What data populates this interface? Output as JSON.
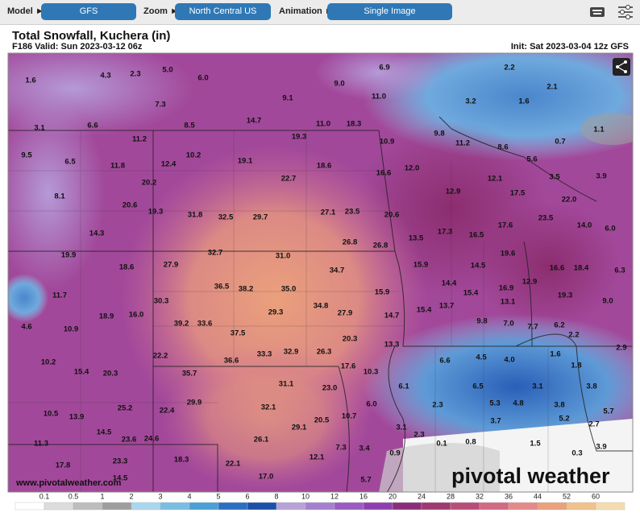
{
  "header": {
    "model_label": "Model ►",
    "model": "GFS",
    "zoom_label": "Zoom ►",
    "zoom": "North Central US",
    "animation_label": "Animation ►",
    "animation": "Single Image"
  },
  "title": "Total Snowfall, Kuchera (in)",
  "valid": "F186 Valid: Sun 2023-03-12 06z",
  "init": "Init: Sat 2023-03-04 12z GFS",
  "website": "www.pivotalweather.com",
  "logo": "pivotal weather",
  "map": {
    "labels": [
      "1.6",
      "4.3",
      "2.3",
      "5.0",
      "6.0",
      "7.3",
      "9.1",
      "9.0",
      "6.9",
      "11.0",
      "2.2",
      "2.1",
      "3.2",
      "1.6",
      "1.1",
      "0.7",
      "3.1",
      "6.6",
      "8.5",
      "14.7",
      "11.0",
      "18.3",
      "19.3",
      "10.9",
      "9.8",
      "11.2",
      "8.6",
      "5.6",
      "9.5",
      "11.2",
      "6.5",
      "10.2",
      "19.1",
      "18.6",
      "16.6",
      "12.0",
      "3.5",
      "3.9",
      "11.8",
      "12.4",
      "22.7",
      "12.1",
      "17.5",
      "22.0",
      "8.1",
      "20.2",
      "12.9",
      "20.6",
      "19.3",
      "31.8",
      "32.5",
      "29.7",
      "27.1",
      "23.5",
      "20.6",
      "23.5",
      "14.0",
      "6.0",
      "14.3",
      "17.3",
      "16.5",
      "17.6",
      "13.5",
      "26.8",
      "26.8",
      "19.9",
      "18.6",
      "27.9",
      "32.7",
      "31.0",
      "19.6",
      "15.9",
      "14.5",
      "16.6",
      "18.4",
      "6.3",
      "34.7",
      "14.4",
      "12.9",
      "36.5",
      "38.2",
      "35.0",
      "15.9",
      "15.4",
      "16.9",
      "19.3",
      "11.7",
      "30.3",
      "34.8",
      "13.1",
      "9.0",
      "29.3",
      "27.9",
      "13.7",
      "15.4",
      "18.9",
      "16.0",
      "14.7",
      "9.8",
      "7.0",
      "7.7",
      "6.2",
      "4.6",
      "10.9",
      "39.2",
      "33.6",
      "37.5",
      "20.3",
      "2.2",
      "13.3",
      "2.9",
      "33.3",
      "32.9",
      "26.3",
      "22.2",
      "4.5",
      "4.0",
      "1.6",
      "36.6",
      "6.6",
      "1.8",
      "10.2",
      "17.6",
      "10.3",
      "15.4",
      "20.3",
      "35.7",
      "31.1",
      "23.0",
      "6.1",
      "6.5",
      "3.1",
      "3.8",
      "25.2",
      "29.9",
      "32.1",
      "6.0",
      "2.3",
      "5.3",
      "4.8",
      "3.8",
      "5.7",
      "10.5",
      "13.9",
      "22.4",
      "10.7",
      "20.5",
      "3.7",
      "5.2",
      "2.7",
      "14.5",
      "29.1",
      "3.1",
      "2.3",
      "23.6",
      "24.6",
      "26.1",
      "0.1",
      "0.8",
      "1.5",
      "3.9",
      "11.3",
      "7.3",
      "3.4",
      "0.9",
      "0.3",
      "12.1",
      "18.3",
      "22.1",
      "23.3",
      "17.8",
      "14.5",
      "17.0",
      "5.7"
    ]
  },
  "colorbar": {
    "ticks": [
      "0.1",
      "0.5",
      "1",
      "2",
      "3",
      "4",
      "5",
      "6",
      "8",
      "10",
      "12",
      "16",
      "20",
      "24",
      "28",
      "32",
      "36",
      "44",
      "52",
      "60"
    ],
    "colors": [
      "#ffffff",
      "#dcdcdc",
      "#bdbdbd",
      "#9e9e9e",
      "#a9d7ee",
      "#79bde3",
      "#4a9fd6",
      "#2a6fc2",
      "#1e4fa8",
      "#b7a2d8",
      "#a67fcf",
      "#9a5cc0",
      "#8e3fae",
      "#8a2e7a",
      "#9d3a70",
      "#b84e78",
      "#d26a84",
      "#e58a8a",
      "#eaa27c",
      "#f0c28c",
      "#f5dcb0"
    ]
  }
}
